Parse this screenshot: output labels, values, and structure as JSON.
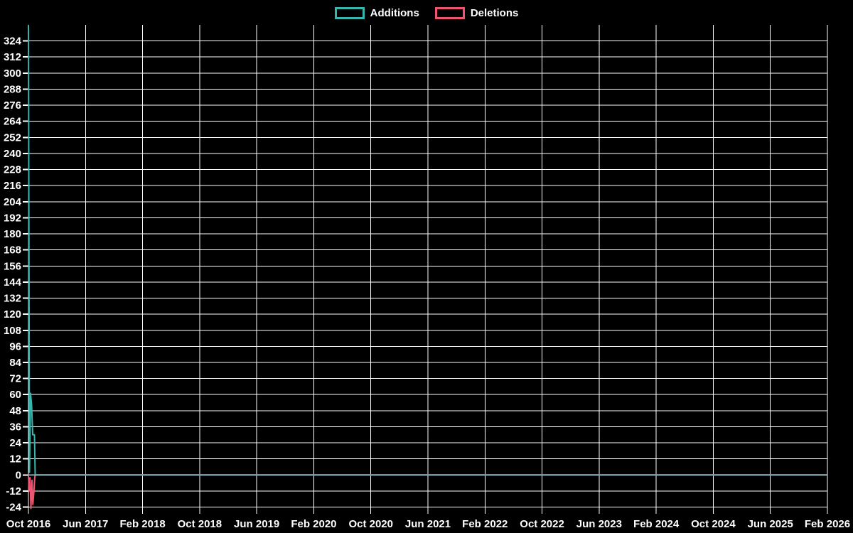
{
  "page": {
    "background": "#000000",
    "grid_color": "#ffffff",
    "text_color": "#ffffff",
    "zero_line_color": "#7ea6ae"
  },
  "legend": {
    "items": [
      {
        "label": "Additions",
        "color": "#36b6ae"
      },
      {
        "label": "Deletions",
        "color": "#ef5571"
      }
    ]
  },
  "chart_data": {
    "type": "line",
    "title": "",
    "xlabel": "",
    "ylabel": "",
    "grid": true,
    "legend_position": "top-center",
    "x_axis": {
      "tick_labels": [
        "Oct 2016",
        "Jun 2017",
        "Feb 2018",
        "Oct 2018",
        "Jun 2019",
        "Feb 2020",
        "Oct 2020",
        "Jun 2021",
        "Feb 2022",
        "Oct 2022",
        "Jun 2023",
        "Feb 2024",
        "Oct 2024",
        "Jun 2025",
        "Feb 2026"
      ],
      "tick_interval_months": 8,
      "domain_months": [
        0,
        112
      ]
    },
    "y_axis": {
      "tick_labels": [
        "324",
        "312",
        "300",
        "288",
        "276",
        "264",
        "252",
        "240",
        "228",
        "216",
        "204",
        "192",
        "180",
        "168",
        "156",
        "144",
        "132",
        "120",
        "108",
        "96",
        "84",
        "72",
        "60",
        "48",
        "36",
        "24",
        "12",
        "0",
        "-12",
        "-24"
      ],
      "tick_min": -24,
      "tick_max": 324,
      "tick_step": 12,
      "domain": [
        -29,
        336
      ]
    },
    "series": [
      {
        "name": "Additions",
        "color": "#36b6ae",
        "points": [
          [
            0,
            336
          ],
          [
            0.15,
            2
          ],
          [
            0.3,
            61
          ],
          [
            0.45,
            52
          ],
          [
            0.6,
            30
          ],
          [
            0.85,
            30
          ],
          [
            0.95,
            0
          ],
          [
            112,
            0
          ]
        ]
      },
      {
        "name": "Deletions",
        "color": "#ef5571",
        "points": [
          [
            0,
            0
          ],
          [
            0.1,
            -12
          ],
          [
            0.22,
            -2
          ],
          [
            0.35,
            -25
          ],
          [
            0.5,
            -4
          ],
          [
            0.62,
            -22
          ],
          [
            0.75,
            -14
          ],
          [
            0.9,
            -1
          ],
          [
            1.1,
            0
          ],
          [
            112,
            0
          ]
        ]
      }
    ]
  }
}
